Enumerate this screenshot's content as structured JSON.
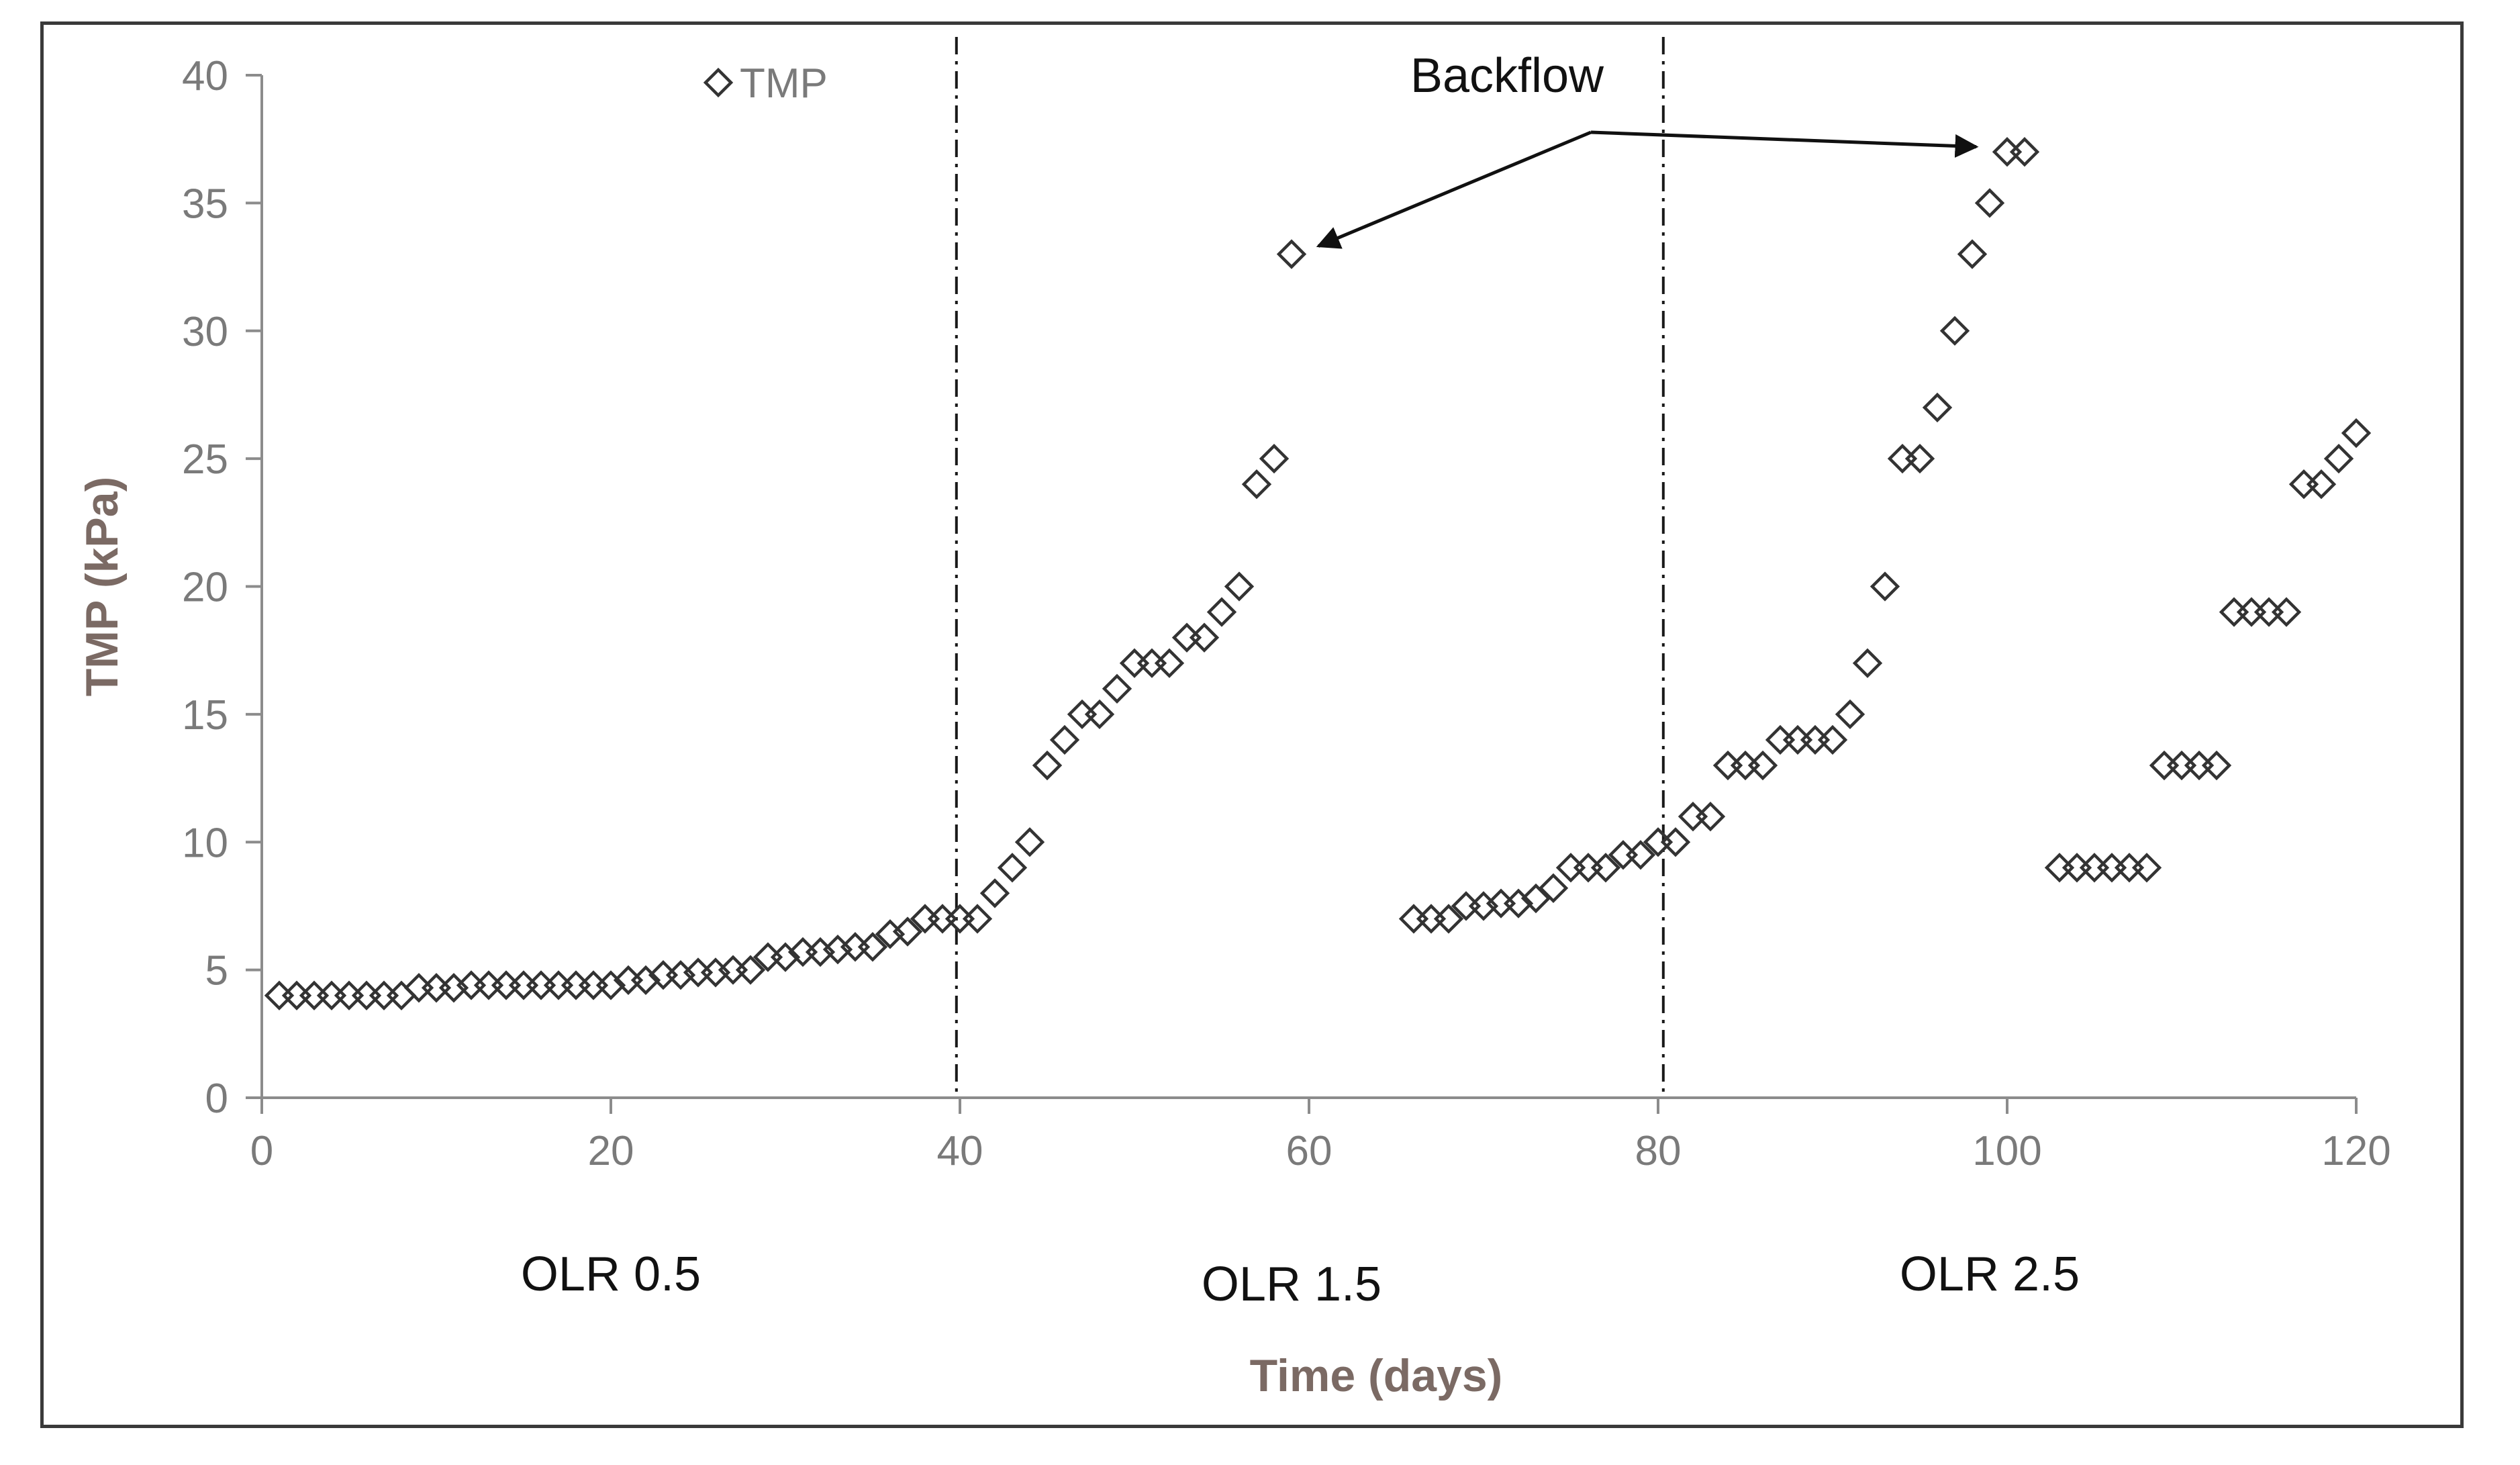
{
  "chart_data": {
    "type": "scatter",
    "title": "",
    "xlabel": "Time (days)",
    "ylabel": "TMP (kPa)",
    "xlim": [
      0,
      120
    ],
    "ylim": [
      0,
      40
    ],
    "xticks": [
      0,
      20,
      40,
      60,
      80,
      100,
      120
    ],
    "yticks": [
      0,
      5,
      10,
      15,
      20,
      25,
      30,
      35,
      40
    ],
    "grid": false,
    "legend": {
      "position": "top-left",
      "entries": [
        "TMP"
      ]
    },
    "series": [
      {
        "name": "TMP",
        "marker": "diamond-open",
        "color": "#333333",
        "x": [
          1,
          2,
          3,
          4,
          5,
          6,
          7,
          8,
          9,
          10,
          11,
          12,
          13,
          14,
          15,
          16,
          17,
          18,
          19,
          20,
          21,
          22,
          23,
          24,
          25,
          26,
          27,
          28,
          29,
          30,
          31,
          32,
          33,
          34,
          35,
          36,
          37,
          38,
          39,
          40,
          41,
          42,
          43,
          44,
          45,
          46,
          47,
          48,
          49,
          50,
          51,
          52,
          53,
          54,
          55,
          56,
          57,
          58,
          59,
          66,
          67,
          68,
          69,
          70,
          71,
          72,
          73,
          74,
          75,
          76,
          77,
          78,
          79,
          80,
          81,
          82,
          83,
          84,
          85,
          86,
          87,
          88,
          89,
          90,
          91,
          92,
          93,
          94,
          95,
          96,
          97,
          98,
          99,
          100,
          101,
          103,
          104,
          105,
          106,
          107,
          108,
          109,
          110,
          111,
          112,
          113,
          114,
          115,
          116,
          117,
          118,
          119,
          120
        ],
        "y": [
          4,
          4,
          4,
          4,
          4,
          4,
          4,
          4,
          4.3,
          4.3,
          4.3,
          4.4,
          4.4,
          4.4,
          4.4,
          4.4,
          4.4,
          4.4,
          4.4,
          4.4,
          4.6,
          4.6,
          4.8,
          4.8,
          4.9,
          4.9,
          5,
          5,
          5.5,
          5.5,
          5.7,
          5.7,
          5.8,
          5.9,
          5.9,
          6.4,
          6.5,
          7,
          7,
          7,
          7,
          8,
          9,
          10,
          13,
          14,
          15,
          15,
          16,
          17,
          17,
          17,
          18,
          18,
          19,
          20,
          24,
          25,
          33,
          7,
          7,
          7,
          7.5,
          7.5,
          7.6,
          7.6,
          7.8,
          8.2,
          9,
          9,
          9,
          9.5,
          9.5,
          10,
          10,
          11,
          11,
          13,
          13,
          13,
          14,
          14,
          14,
          14,
          15,
          17,
          20,
          25,
          25,
          27,
          30,
          33,
          35,
          37,
          37,
          9,
          9,
          9,
          9,
          9,
          9,
          13,
          13,
          13,
          13,
          19,
          19,
          19,
          19,
          24,
          24,
          25,
          26
        ]
      }
    ],
    "vertical_lines": [
      {
        "x": 39.8,
        "style": "dash-dot"
      },
      {
        "x": 80.3,
        "style": "dash-dot"
      }
    ],
    "region_labels": [
      {
        "text": "OLR 0.5",
        "x": 20
      },
      {
        "text": "OLR 1.5",
        "x": 59
      },
      {
        "text": "OLR 2.5",
        "x": 99
      }
    ],
    "annotation": {
      "text": "Backflow",
      "arrow_targets": [
        {
          "x": 59,
          "y": 33
        },
        {
          "x": 99,
          "y": 37.2
        }
      ]
    }
  }
}
